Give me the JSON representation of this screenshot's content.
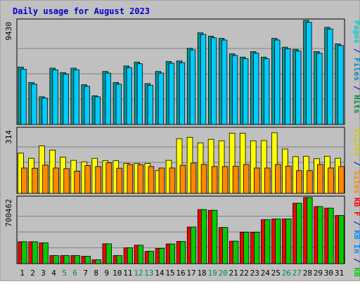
{
  "chart_data": {
    "type": "bar",
    "title": "Daily usage for August 2023",
    "categories": [
      "1",
      "2",
      "3",
      "4",
      "5",
      "6",
      "7",
      "8",
      "9",
      "10",
      "11",
      "12",
      "13",
      "14",
      "15",
      "16",
      "17",
      "18",
      "19",
      "20",
      "21",
      "22",
      "23",
      "24",
      "25",
      "26",
      "27",
      "28",
      "29",
      "30",
      "31"
    ],
    "weekend_days": [
      "5",
      "6",
      "12",
      "13",
      "19",
      "20",
      "26",
      "27"
    ],
    "panels": [
      {
        "id": "top",
        "ymax_label": "9430",
        "ylim": [
          0,
          9430
        ],
        "right_label": [
          {
            "text": "Pages",
            "color": "#00cccc"
          },
          {
            "text": " / ",
            "color": "#0000aa"
          },
          {
            "text": "Files",
            "color": "#0088cc"
          },
          {
            "text": " / ",
            "color": "#0000aa"
          },
          {
            "text": "Hits",
            "color": "#008844"
          }
        ],
        "series": [
          {
            "name": "Hits",
            "color": "#009999",
            "values": [
              5200,
              3800,
              2500,
              5100,
              4700,
              5100,
              3600,
              2600,
              4800,
              3800,
              5300,
              5650,
              3700,
              4800,
              5700,
              5750,
              6900,
              8300,
              8000,
              7800,
              6400,
              6100,
              6600,
              6100,
              7800,
              7000,
              6800,
              9430,
              6600,
              8800,
              7300
            ]
          },
          {
            "name": "Files",
            "color": "#00ccff",
            "values": [
              5000,
              3650,
              2400,
              4950,
              4550,
              4950,
              3450,
              2500,
              4650,
              3650,
              5150,
              5500,
              3550,
              4650,
              5550,
              5600,
              6750,
              8150,
              7850,
              7650,
              6250,
              5950,
              6450,
              5950,
              7650,
              6850,
              6650,
              9250,
              6450,
              8650,
              7150
            ]
          }
        ]
      },
      {
        "id": "middle",
        "ymax_label": "314",
        "ylim": [
          0,
          314
        ],
        "right_label": [
          {
            "text": "Visits",
            "color": "#cccc00"
          },
          {
            "text": " / ",
            "color": "#0000aa"
          },
          {
            "text": "Sites",
            "color": "#ff8800"
          }
        ],
        "series": [
          {
            "name": "Visits",
            "color": "#ffff00",
            "values": [
              195,
              170,
              230,
              210,
              176,
              160,
              153,
              170,
              158,
              158,
              145,
              145,
              145,
              110,
              160,
              265,
              272,
              245,
              262,
              255,
              292,
              292,
              255,
              256,
              294,
              215,
              178,
              180,
              168,
              180,
              170
            ]
          },
          {
            "name": "Sites",
            "color": "#ff8800",
            "values": [
              123,
              122,
              137,
              123,
              120,
              108,
              135,
              130,
              148,
              122,
              140,
              139,
              130,
              123,
              123,
              136,
              147,
              140,
              130,
              130,
              132,
              140,
              123,
              123,
              140,
              132,
              110,
              110,
              140,
              123,
              130
            ]
          }
        ]
      },
      {
        "id": "bottom",
        "ymax_label": "700462",
        "ylim": [
          0,
          700462
        ],
        "right_label": [
          {
            "text": "KB F",
            "color": "#ff0000"
          },
          {
            "text": " / ",
            "color": "#0000aa"
          },
          {
            "text": "KB In",
            "color": "#0088ff"
          },
          {
            "text": " / ",
            "color": "#0000aa"
          },
          {
            "text": "KB Out",
            "color": "#00cc00"
          }
        ],
        "series": [
          {
            "name": "KB F",
            "color": "#ff0000",
            "values": [
              232000,
              232000,
              220000,
              85000,
              85000,
              85000,
              78000,
              40000,
              210000,
              85000,
              168000,
              195000,
              130000,
              160000,
              208000,
              235000,
              388000,
              573000,
              565000,
              383000,
              238000,
              333000,
              333000,
              466000,
              474000,
              474000,
              640000,
              700462,
              605000,
              588000,
              510000
            ]
          },
          {
            "name": "KB Out",
            "color": "#00cc00",
            "values": [
              232000,
              232000,
              220000,
              85000,
              85000,
              85000,
              78000,
              40000,
              210000,
              85000,
              168000,
              195000,
              130000,
              160000,
              208000,
              235000,
              388000,
              573000,
              565000,
              383000,
              238000,
              333000,
              333000,
              466000,
              474000,
              474000,
              640000,
              700462,
              605000,
              588000,
              510000
            ]
          }
        ]
      }
    ]
  }
}
